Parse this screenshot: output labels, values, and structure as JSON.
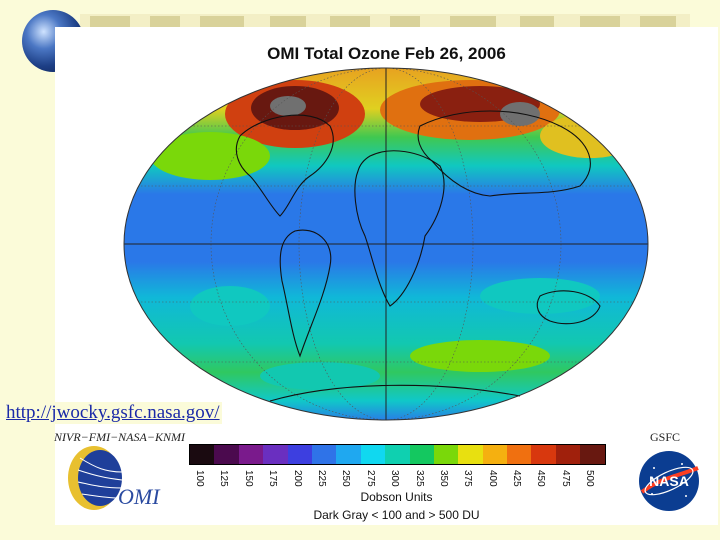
{
  "title": "OMI Total Ozone Feb 26, 2006",
  "url": "http://jwocky.gsfc.nasa.gov/",
  "credit_left": "NIVR−FMI−NASA−KNMI",
  "credit_right": "GSFC",
  "colorbar": {
    "ticks": [
      "100",
      "125",
      "150",
      "175",
      "200",
      "225",
      "250",
      "275",
      "300",
      "325",
      "350",
      "375",
      "400",
      "425",
      "450",
      "475",
      "500"
    ],
    "colors": [
      "#1a0a10",
      "#4b0a4e",
      "#7a1a8c",
      "#6a2fc0",
      "#3d3fe0",
      "#2f73e8",
      "#1fa8f0",
      "#10d8f0",
      "#0fd0b0",
      "#14c860",
      "#7ad80a",
      "#e8e010",
      "#f5b010",
      "#f07010",
      "#d8380e",
      "#a0200c",
      "#681810"
    ],
    "units_label": "Dobson Units",
    "note": "Dark Gray < 100 and > 500 DU"
  },
  "logos": {
    "omi_text": "OMI",
    "nasa_text": "NASA"
  },
  "colors": {
    "slide_background": "#fbfbd9",
    "link": "#1b2aa8"
  }
}
